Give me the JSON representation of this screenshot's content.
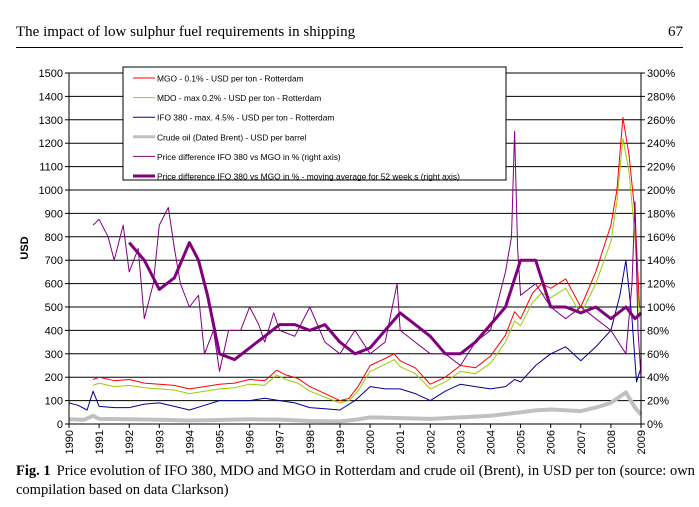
{
  "header": {
    "title": "The impact of low sulphur fuel requirements in shipping",
    "page_number": "67"
  },
  "caption": {
    "label": "Fig. 1",
    "text": "Price evolution of IFO 380, MDO and MGO in Rotterdam and crude oil (Brent), in USD per ton (source: own compilation based on data Clarkson)"
  },
  "chart_data": {
    "type": "line",
    "ylabel": "USD",
    "xlim": [
      1990,
      2009
    ],
    "ylim": [
      0,
      1500
    ],
    "y2lim": [
      0,
      300
    ],
    "x_ticks": [
      "1990",
      "1991",
      "1992",
      "1993",
      "1994",
      "1995",
      "1996",
      "1997",
      "1998",
      "1999",
      "2000",
      "2001",
      "2002",
      "2003",
      "2004",
      "2005",
      "2006",
      "2007",
      "2008",
      "2009"
    ],
    "y_ticks": [
      "0",
      "100",
      "200",
      "300",
      "400",
      "500",
      "600",
      "700",
      "800",
      "900",
      "1000",
      "1100",
      "1200",
      "1300",
      "1400",
      "1500"
    ],
    "y2_ticks": [
      "0%",
      "20%",
      "40%",
      "60%",
      "80%",
      "100%",
      "120%",
      "140%",
      "160%",
      "180%",
      "200%",
      "220%",
      "240%",
      "260%",
      "280%",
      "300%"
    ],
    "grid": "horizontal",
    "legend_position": "top-left",
    "series": [
      {
        "name": "MGO - 0.1% - USD per ton - Rotterdam",
        "color": "#ff0000",
        "axis": "left",
        "width": 1,
        "x": [
          1990.8,
          1991,
          1991.5,
          1992,
          1992.5,
          1993,
          1993.5,
          1994,
          1994.5,
          1995,
          1995.5,
          1996,
          1996.5,
          1996.9,
          1997.2,
          1997.6,
          1998,
          1998.5,
          1999,
          1999.3,
          1999.6,
          2000,
          2000.5,
          2000.8,
          2001,
          2001.5,
          2002,
          2002.5,
          2003,
          2003.5,
          2004,
          2004.5,
          2004.8,
          2005,
          2005.4,
          2005.7,
          2006,
          2006.5,
          2007,
          2007.5,
          2008,
          2008.2,
          2008.4,
          2008.6,
          2008.8,
          2008.95
        ],
        "y": [
          190,
          200,
          185,
          190,
          175,
          170,
          165,
          150,
          160,
          170,
          175,
          190,
          185,
          230,
          210,
          195,
          160,
          130,
          100,
          110,
          160,
          250,
          280,
          300,
          270,
          240,
          170,
          200,
          250,
          240,
          290,
          380,
          480,
          450,
          560,
          600,
          580,
          620,
          500,
          650,
          850,
          1000,
          1310,
          1150,
          900,
          500
        ]
      },
      {
        "name": "MDO - max 0.2% - USD per ton - Rotterdam",
        "color": "#99cc00",
        "axis": "left",
        "width": 1,
        "x": [
          1990.8,
          1991,
          1991.5,
          1992,
          1992.5,
          1993,
          1993.5,
          1994,
          1994.5,
          1995,
          1995.5,
          1996,
          1996.5,
          1996.9,
          1997.2,
          1997.6,
          1998,
          1998.5,
          1999,
          1999.3,
          1999.6,
          2000,
          2000.5,
          2000.8,
          2001,
          2001.5,
          2002,
          2002.5,
          2003,
          2003.5,
          2004,
          2004.5,
          2004.8,
          2005,
          2005.4,
          2005.7,
          2006,
          2006.5,
          2007,
          2007.5,
          2008,
          2008.2,
          2008.4,
          2008.6,
          2008.8,
          2008.95
        ],
        "y": [
          165,
          175,
          160,
          165,
          155,
          150,
          145,
          130,
          140,
          150,
          155,
          170,
          165,
          210,
          190,
          175,
          140,
          115,
          90,
          100,
          140,
          225,
          255,
          275,
          245,
          215,
          150,
          180,
          225,
          215,
          260,
          350,
          440,
          420,
          520,
          560,
          540,
          580,
          470,
          600,
          780,
          950,
          1220,
          1080,
          800,
          450
        ]
      },
      {
        "name": "IFO 380 - max. 4.5% - USD per ton - Rotterdam",
        "color": "#000099",
        "axis": "left",
        "width": 1,
        "x": [
          1990,
          1990.3,
          1990.6,
          1990.8,
          1991,
          1991.5,
          1992,
          1992.5,
          1993,
          1993.5,
          1994,
          1994.5,
          1995,
          1995.5,
          1996,
          1996.5,
          1997,
          1997.5,
          1998,
          1998.5,
          1999,
          1999.5,
          2000,
          2000.5,
          2001,
          2001.5,
          2002,
          2002.5,
          2003,
          2003.5,
          2004,
          2004.5,
          2004.8,
          2005,
          2005.5,
          2006,
          2006.5,
          2007,
          2007.5,
          2008,
          2008.3,
          2008.5,
          2008.7,
          2008.85,
          2009
        ],
        "y": [
          90,
          80,
          60,
          140,
          75,
          70,
          70,
          85,
          90,
          75,
          60,
          80,
          100,
          100,
          100,
          110,
          100,
          90,
          70,
          65,
          60,
          100,
          160,
          150,
          150,
          130,
          100,
          140,
          170,
          160,
          150,
          160,
          190,
          180,
          250,
          300,
          330,
          270,
          330,
          400,
          550,
          700,
          450,
          180,
          240
        ]
      },
      {
        "name": "Crude oil (Dated Brent) - USD per barrel",
        "color": "#c0c0c0",
        "axis": "left",
        "width": 4,
        "x": [
          1990,
          1990.5,
          1990.8,
          1991,
          1992,
          1993,
          1994,
          1995,
          1996,
          1997,
          1998,
          1999,
          1999.5,
          2000,
          2001,
          2002,
          2003,
          2004,
          2005,
          2005.5,
          2006,
          2007,
          2007.5,
          2008,
          2008.5,
          2008.8,
          2009
        ],
        "y": [
          20,
          18,
          35,
          22,
          20,
          18,
          15,
          17,
          20,
          19,
          13,
          11,
          18,
          28,
          25,
          22,
          28,
          35,
          50,
          58,
          62,
          55,
          70,
          90,
          135,
          70,
          40
        ]
      },
      {
        "name": "Price difference IFO 380 vs MGO in % (right axis)",
        "color": "#800080",
        "axis": "right",
        "width": 1,
        "x": [
          1990.8,
          1991,
          1991.3,
          1991.5,
          1991.8,
          1992,
          1992.3,
          1992.5,
          1992.8,
          1993,
          1993.3,
          1993.5,
          1993.7,
          1994,
          1994.3,
          1994.5,
          1994.8,
          1995,
          1995.3,
          1995.7,
          1996,
          1996.3,
          1996.5,
          1996.8,
          1997,
          1997.5,
          1998,
          1998.5,
          1999,
          1999.5,
          2000,
          2000.5,
          2000.9,
          2001,
          2001.5,
          2002,
          2002.5,
          2003,
          2003.5,
          2004,
          2004.5,
          2004.7,
          2004.8,
          2004.9,
          2005,
          2005.5,
          2006,
          2006.5,
          2007,
          2007.5,
          2008,
          2008.5,
          2008.7,
          2008.8,
          2008.9,
          2009
        ],
        "y": [
          170,
          175,
          160,
          140,
          170,
          130,
          150,
          90,
          120,
          170,
          185,
          150,
          120,
          100,
          110,
          60,
          80,
          45,
          80,
          80,
          100,
          85,
          70,
          95,
          80,
          75,
          100,
          70,
          60,
          80,
          60,
          70,
          120,
          80,
          70,
          60,
          60,
          50,
          70,
          80,
          130,
          160,
          250,
          150,
          110,
          120,
          100,
          90,
          100,
          90,
          80,
          60,
          120,
          190,
          80,
          40
        ]
      },
      {
        "name": "Price difference IFO 380 vs MGO in % - moving average for 52 week s (right axis)",
        "color": "#800080",
        "axis": "right",
        "width": 3,
        "x": [
          1992,
          1992.5,
          1993,
          1993.5,
          1994,
          1994.3,
          1994.6,
          1995,
          1995.5,
          1996,
          1996.5,
          1997,
          1997.5,
          1998,
          1998.5,
          1999,
          1999.5,
          2000,
          2000.5,
          2001,
          2001.5,
          2002,
          2002.5,
          2003,
          2003.5,
          2004,
          2004.5,
          2005,
          2005.5,
          2006,
          2006.5,
          2007,
          2007.5,
          2008,
          2008.5,
          2008.8,
          2009
        ],
        "y": [
          155,
          140,
          115,
          125,
          155,
          140,
          110,
          60,
          55,
          65,
          75,
          85,
          85,
          80,
          85,
          70,
          60,
          65,
          80,
          95,
          85,
          75,
          60,
          60,
          70,
          85,
          100,
          140,
          140,
          100,
          100,
          95,
          100,
          90,
          100,
          90,
          95
        ]
      }
    ]
  }
}
